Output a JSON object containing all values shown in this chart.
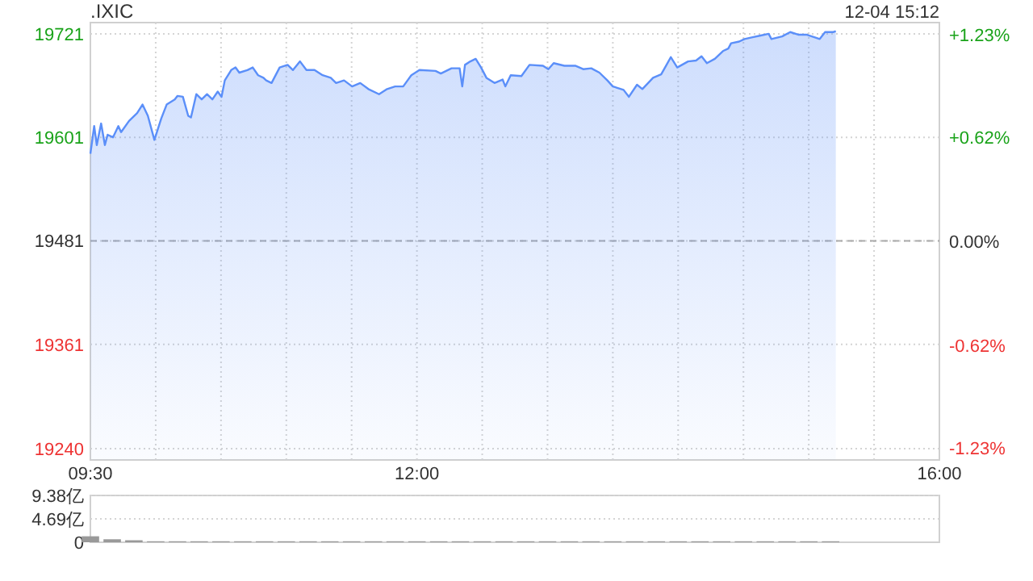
{
  "chart_data": [
    {
      "type": "area",
      "title": ".IXIC",
      "annotations": [
        "12-04 15:12"
      ],
      "x": [
        9.5,
        9.529,
        9.549,
        9.582,
        9.611,
        9.632,
        9.673,
        9.714,
        9.735,
        9.796,
        9.858,
        9.899,
        9.94,
        9.99,
        10.043,
        10.084,
        10.146,
        10.167,
        10.208,
        10.249,
        10.27,
        10.311,
        10.352,
        10.393,
        10.434,
        10.475,
        10.504,
        10.529,
        10.578,
        10.611,
        10.64,
        10.702,
        10.743,
        10.784,
        10.825,
        10.846,
        10.887,
        10.949,
        11.01,
        11.051,
        11.105,
        11.154,
        11.216,
        11.278,
        11.34,
        11.381,
        11.442,
        11.504,
        11.566,
        11.628,
        11.71,
        11.772,
        11.833,
        11.895,
        11.957,
        12.019,
        12.142,
        12.183,
        12.265,
        12.327,
        12.347,
        12.368,
        12.409,
        12.45,
        12.491,
        12.532,
        12.594,
        12.656,
        12.677,
        12.718,
        12.8,
        12.862,
        12.965,
        13.006,
        13.047,
        13.129,
        13.212,
        13.273,
        13.335,
        13.397,
        13.458,
        13.5,
        13.582,
        13.623,
        13.685,
        13.726,
        13.808,
        13.87,
        13.911,
        13.944,
        13.993,
        14.076,
        14.137,
        14.179,
        14.22,
        14.281,
        14.343,
        14.384,
        14.405,
        14.467,
        14.508,
        14.57,
        14.632,
        14.693,
        14.714,
        14.796,
        14.858,
        14.919,
        14.981,
        15.043,
        15.084,
        15.125,
        15.187,
        15.207
      ],
      "series": [
        {
          "color": "#5b8ff9",
          "values": [
            19582,
            19614,
            19592,
            19617,
            19592,
            19604,
            19601,
            19614,
            19607,
            19620,
            19629,
            19639,
            19626,
            19598,
            19623,
            19639,
            19645,
            19649,
            19648,
            19626,
            19624,
            19651,
            19645,
            19651,
            19645,
            19654,
            19648,
            19667,
            19679,
            19682,
            19676,
            19679,
            19682,
            19673,
            19670,
            19667,
            19664,
            19682,
            19685,
            19679,
            19689,
            19679,
            19679,
            19673,
            19670,
            19664,
            19667,
            19660,
            19664,
            19657,
            19651,
            19657,
            19660,
            19660,
            19673,
            19679,
            19678,
            19675,
            19681,
            19681,
            19660,
            19685,
            19689,
            19692,
            19682,
            19670,
            19664,
            19668,
            19660,
            19673,
            19672,
            19685,
            19684,
            19680,
            19687,
            19684,
            19684,
            19680,
            19681,
            19676,
            19667,
            19660,
            19656,
            19648,
            19662,
            19657,
            19670,
            19674,
            19685,
            19694,
            19682,
            19689,
            19690,
            19695,
            19687,
            19692,
            19701,
            19704,
            19710,
            19712,
            19715,
            19717,
            19719,
            19721,
            19715,
            19718,
            19723,
            19720,
            19720,
            19717,
            19715,
            19723,
            19723,
            19724
          ]
        }
      ],
      "xlim": [
        9.5,
        16
      ],
      "xticks": [
        {
          "value": 9.5,
          "label": "09:30"
        },
        {
          "value": 10,
          "label": null
        },
        {
          "value": 10.5,
          "label": null
        },
        {
          "value": 11,
          "label": null
        },
        {
          "value": 11.5,
          "label": null
        },
        {
          "value": 12,
          "label": "12:00"
        },
        {
          "value": 12.5,
          "label": null
        },
        {
          "value": 13,
          "label": null
        },
        {
          "value": 13.5,
          "label": null
        },
        {
          "value": 14,
          "label": null
        },
        {
          "value": 14.5,
          "label": null
        },
        {
          "value": 15,
          "label": null
        },
        {
          "value": 15.5,
          "label": null
        },
        {
          "value": 16,
          "label": "16:00"
        }
      ],
      "ylim": [
        19227,
        19734
      ],
      "yticks": [
        19240,
        19361,
        19481,
        19601,
        19721
      ],
      "y2lim": [
        -1.3,
        1.3
      ],
      "y2ticks": [
        {
          "value": -1.23,
          "label": "-1.23%"
        },
        {
          "value": -0.62,
          "label": "-0.62%"
        },
        {
          "value": 0,
          "label": "0.00%"
        },
        {
          "value": 0.62,
          "label": "+0.62%"
        },
        {
          "value": 1.23,
          "label": "+1.23%"
        }
      ],
      "grid": true,
      "ref_lines": [
        {
          "axis": "y",
          "value": 19481,
          "color": "#aaaaaa",
          "line_style": "dashed"
        }
      ]
    },
    {
      "type": "bar",
      "color": "#999999",
      "x": [
        9.5,
        9.667,
        9.833,
        10,
        10.167,
        10.333,
        10.5,
        10.667,
        10.833,
        11,
        11.167,
        11.333,
        11.5,
        11.667,
        11.833,
        12,
        12.167,
        12.333,
        12.5,
        12.667,
        12.833,
        13,
        13.167,
        13.333,
        13.5,
        13.667,
        13.833,
        14,
        14.167,
        14.333,
        14.5,
        14.667,
        14.833,
        15,
        15.167
      ],
      "values": [
        1.2,
        0.6,
        0.4,
        0.2,
        0.2,
        0.2,
        0.2,
        0.2,
        0.2,
        0.2,
        0.2,
        0.2,
        0.2,
        0.2,
        0.2,
        0.2,
        0.2,
        0.2,
        0.2,
        0.2,
        0.2,
        0.2,
        0.2,
        0.2,
        0.2,
        0.2,
        0.2,
        0.2,
        0.2,
        0.2,
        0.2,
        0.2,
        0.2,
        0.2,
        0.2
      ],
      "xlim": [
        9.5,
        16
      ],
      "ylim": [
        0,
        9.38
      ],
      "yticks": [
        0,
        {
          "value": 4.69,
          "label": "4.69亿"
        },
        {
          "value": 9.38,
          "label": "9.38亿"
        }
      ],
      "grid": "y",
      "tick_labels": "y"
    }
  ]
}
